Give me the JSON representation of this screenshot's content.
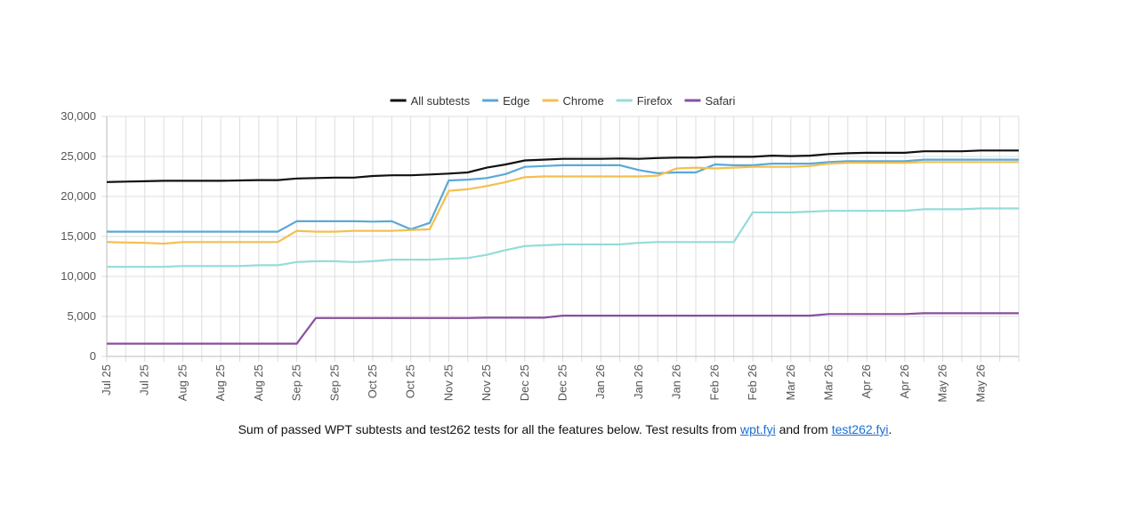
{
  "chart_data": {
    "type": "line",
    "categories": [
      "Jul 25",
      null,
      "Jul 25",
      null,
      "Aug 25",
      null,
      "Aug 25",
      null,
      "Aug 25",
      null,
      "Sep 25",
      null,
      "Sep 25",
      null,
      "Oct 25",
      null,
      "Oct 25",
      null,
      "Nov 25",
      null,
      "Nov 25",
      null,
      "Dec 25",
      null,
      "Dec 25",
      null,
      "Jan 26",
      null,
      "Jan 26",
      null,
      "Jan 26",
      null,
      "Feb 26",
      null,
      "Feb 26",
      null,
      "Mar 26",
      null,
      "Mar 26",
      null,
      "Apr 26",
      null,
      "Apr 26",
      null,
      "May 26",
      null,
      "May 26",
      null,
      null
    ],
    "series": [
      {
        "name": "All subtests",
        "color": "#111111",
        "values": [
          21800,
          21850,
          21900,
          21950,
          21950,
          21950,
          21950,
          22000,
          22050,
          22050,
          22250,
          22300,
          22350,
          22350,
          22550,
          22650,
          22650,
          22750,
          22850,
          23000,
          23600,
          24000,
          24500,
          24600,
          24700,
          24700,
          24700,
          24750,
          24700,
          24800,
          24850,
          24850,
          24950,
          24950,
          24950,
          25100,
          25050,
          25100,
          25300,
          25400,
          25450,
          25450,
          25450,
          25650,
          25650,
          25650,
          25750,
          25750,
          25750
        ]
      },
      {
        "name": "Edge",
        "color": "#5aa9d6",
        "values": [
          15600,
          15600,
          15600,
          15600,
          15600,
          15600,
          15600,
          15600,
          15600,
          15600,
          16900,
          16900,
          16900,
          16900,
          16850,
          16900,
          15900,
          16700,
          22000,
          22100,
          22300,
          22800,
          23700,
          23800,
          23900,
          23900,
          23900,
          23900,
          23300,
          22900,
          23000,
          23000,
          24000,
          23900,
          23900,
          24100,
          24100,
          24100,
          24300,
          24400,
          24400,
          24400,
          24400,
          24600,
          24600,
          24600,
          24600,
          24600,
          24600
        ]
      },
      {
        "name": "Chrome",
        "color": "#f4bf4f",
        "values": [
          14300,
          14250,
          14200,
          14100,
          14300,
          14300,
          14300,
          14300,
          14300,
          14300,
          15700,
          15600,
          15600,
          15700,
          15700,
          15700,
          15800,
          15900,
          20700,
          20900,
          21300,
          21800,
          22400,
          22500,
          22500,
          22500,
          22500,
          22500,
          22500,
          22600,
          23500,
          23600,
          23500,
          23600,
          23700,
          23700,
          23700,
          23800,
          24100,
          24200,
          24200,
          24200,
          24200,
          24300,
          24300,
          24300,
          24300,
          24300,
          24300
        ]
      },
      {
        "name": "Firefox",
        "color": "#94dcd9",
        "values": [
          11200,
          11200,
          11200,
          11200,
          11300,
          11300,
          11300,
          11300,
          11400,
          11400,
          11800,
          11900,
          11900,
          11800,
          11900,
          12100,
          12100,
          12100,
          12200,
          12300,
          12700,
          13300,
          13800,
          13900,
          14000,
          14000,
          14000,
          14000,
          14200,
          14300,
          14300,
          14300,
          14300,
          14300,
          18000,
          18000,
          18000,
          18100,
          18200,
          18200,
          18200,
          18200,
          18200,
          18400,
          18400,
          18400,
          18500,
          18500,
          18500
        ]
      },
      {
        "name": "Safari",
        "color": "#8a4f9e",
        "values": [
          1600,
          1600,
          1600,
          1600,
          1600,
          1600,
          1600,
          1600,
          1600,
          1600,
          1600,
          4800,
          4800,
          4800,
          4800,
          4800,
          4800,
          4800,
          4800,
          4800,
          4850,
          4850,
          4850,
          4850,
          5100,
          5100,
          5100,
          5100,
          5100,
          5100,
          5100,
          5100,
          5100,
          5100,
          5100,
          5100,
          5100,
          5100,
          5300,
          5300,
          5300,
          5300,
          5300,
          5400,
          5400,
          5400,
          5400,
          5400,
          5400
        ]
      }
    ],
    "ylim": [
      0,
      30000
    ],
    "yticks": [
      0,
      {
        "value": 5000,
        "label": "5,000"
      },
      {
        "value": 10000,
        "label": "10,000"
      },
      {
        "value": 15000,
        "label": "15,000"
      },
      {
        "value": 20000,
        "label": "20,000"
      },
      {
        "value": 25000,
        "label": "25,000"
      },
      {
        "value": 30000,
        "label": "30,000"
      }
    ],
    "grid": true,
    "legend": "top"
  },
  "caption": {
    "text": "Sum of passed WPT subtests and test262 tests for all the features below. Test results from",
    "link1": "wpt.fyi",
    "middle": "and from",
    "link2": "test262.fyi",
    "end": "."
  }
}
